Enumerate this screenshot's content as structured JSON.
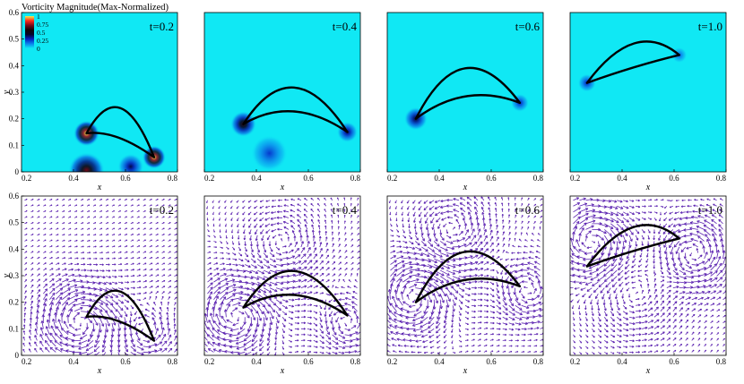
{
  "figure": {
    "colorbar_title": "Vorticity Magnitude(Max-Normalized)",
    "colorbar_ticks": [
      "1",
      "0.75",
      "0.5",
      "0.25",
      "0"
    ],
    "xlabel": "x",
    "ylabel": "y"
  },
  "colors": {
    "field_background": "#10e8f4",
    "colormap": [
      "#f1ec4c",
      "#ff2a1a",
      "#7a0b1b",
      "#120406",
      "#03052a",
      "#0520c2",
      "#0a82ec",
      "#10e8f4"
    ],
    "vector_color": "#5b22b0",
    "body_outline": "#000000"
  },
  "chart_data": [
    {
      "type": "contour",
      "row": "vorticity",
      "label": "t=0.2",
      "xticks": [
        "0.2",
        "0.4",
        "0.6",
        "0.8"
      ],
      "yticks": [
        "0",
        "0.1",
        "0.2",
        "0.3",
        "0.4",
        "0.5",
        "0.6"
      ],
      "xlim": [
        0.2,
        0.8
      ],
      "ylim": [
        0.0,
        0.6
      ],
      "body": {
        "tip1": [
          0.45,
          0.145
        ],
        "tip2": [
          0.71,
          0.055
        ],
        "upper_ctrl": [
          0.58,
          0.38
        ],
        "lower_ctrl": [
          0.56,
          0.16
        ]
      },
      "vortices": [
        {
          "x": 0.45,
          "y": 0.145,
          "r": 0.05,
          "strength": 1.0
        },
        {
          "x": 0.71,
          "y": 0.055,
          "r": 0.045,
          "strength": 1.0
        },
        {
          "x": 0.45,
          "y": 0.005,
          "r": 0.07,
          "strength": 0.7
        },
        {
          "x": 0.62,
          "y": 0.02,
          "r": 0.05,
          "strength": 0.4
        }
      ]
    },
    {
      "type": "contour",
      "row": "vorticity",
      "label": "t=0.4",
      "xticks": [
        "0.2",
        "0.4",
        "0.6",
        "0.8"
      ],
      "yticks": [],
      "xlim": [
        0.2,
        0.8
      ],
      "ylim": [
        0.0,
        0.6
      ],
      "body": {
        "tip1": [
          0.35,
          0.18
        ],
        "tip2": [
          0.75,
          0.15
        ],
        "upper_ctrl": [
          0.54,
          0.47
        ],
        "lower_ctrl": [
          0.54,
          0.29
        ]
      },
      "vortices": [
        {
          "x": 0.35,
          "y": 0.18,
          "r": 0.05,
          "strength": 0.6
        },
        {
          "x": 0.75,
          "y": 0.15,
          "r": 0.04,
          "strength": 0.4
        },
        {
          "x": 0.45,
          "y": 0.07,
          "r": 0.07,
          "strength": 0.25
        }
      ]
    },
    {
      "type": "contour",
      "row": "vorticity",
      "label": "t=0.6",
      "xticks": [
        "0.2",
        "0.4",
        "0.6",
        "0.8"
      ],
      "yticks": [],
      "xlim": [
        0.2,
        0.8
      ],
      "ylim": [
        0.0,
        0.6
      ],
      "body": {
        "tip1": [
          0.31,
          0.2
        ],
        "tip2": [
          0.71,
          0.26
        ],
        "upper_ctrl": [
          0.49,
          0.55
        ],
        "lower_ctrl": [
          0.5,
          0.34
        ]
      },
      "vortices": [
        {
          "x": 0.31,
          "y": 0.2,
          "r": 0.045,
          "strength": 0.45
        },
        {
          "x": 0.71,
          "y": 0.26,
          "r": 0.035,
          "strength": 0.3
        }
      ]
    },
    {
      "type": "contour",
      "row": "vorticity",
      "label": "t=1.0",
      "xticks": [
        "0.2",
        "0.4",
        "0.6",
        "0.8"
      ],
      "yticks": [],
      "xlim": [
        0.2,
        0.8
      ],
      "ylim": [
        0.0,
        0.6
      ],
      "body": {
        "tip1": [
          0.265,
          0.335
        ],
        "tip2": [
          0.62,
          0.44
        ],
        "upper_ctrl": [
          0.45,
          0.58
        ],
        "lower_ctrl": [
          0.45,
          0.4
        ]
      },
      "vortices": [
        {
          "x": 0.265,
          "y": 0.335,
          "r": 0.035,
          "strength": 0.3
        },
        {
          "x": 0.62,
          "y": 0.44,
          "r": 0.03,
          "strength": 0.2
        }
      ]
    },
    {
      "type": "quiver",
      "row": "velocity",
      "label": "t=0.2",
      "xticks": [
        "0.2",
        "0.4",
        "0.6",
        "0.8"
      ],
      "yticks": [
        "0",
        "0.1",
        "0.2",
        "0.3",
        "0.4",
        "0.5",
        "0.6"
      ],
      "xlim": [
        0.2,
        0.8
      ],
      "ylim": [
        0.0,
        0.6
      ],
      "body": {
        "tip1": [
          0.45,
          0.145
        ],
        "tip2": [
          0.71,
          0.055
        ],
        "upper_ctrl": [
          0.58,
          0.38
        ],
        "lower_ctrl": [
          0.56,
          0.16
        ]
      },
      "swirls": [
        {
          "x": 0.42,
          "y": 0.13,
          "s": -1.0,
          "r": 0.12
        },
        {
          "x": 0.68,
          "y": 0.08,
          "s": 0.8,
          "r": 0.08
        }
      ]
    },
    {
      "type": "quiver",
      "row": "velocity",
      "label": "t=0.4",
      "xticks": [
        "0.2",
        "0.4",
        "0.6",
        "0.8"
      ],
      "yticks": [],
      "xlim": [
        0.2,
        0.8
      ],
      "ylim": [
        0.0,
        0.6
      ],
      "body": {
        "tip1": [
          0.35,
          0.18
        ],
        "tip2": [
          0.75,
          0.15
        ],
        "upper_ctrl": [
          0.54,
          0.47
        ],
        "lower_ctrl": [
          0.54,
          0.29
        ]
      },
      "swirls": [
        {
          "x": 0.32,
          "y": 0.15,
          "s": -1.0,
          "r": 0.12
        },
        {
          "x": 0.75,
          "y": 0.12,
          "s": 0.8,
          "r": 0.09
        },
        {
          "x": 0.5,
          "y": 0.42,
          "s": 0.4,
          "r": 0.12
        }
      ]
    },
    {
      "type": "quiver",
      "row": "velocity",
      "label": "t=0.6",
      "xticks": [
        "0.2",
        "0.4",
        "0.6",
        "0.8"
      ],
      "yticks": [],
      "xlim": [
        0.2,
        0.8
      ],
      "ylim": [
        0.0,
        0.6
      ],
      "body": {
        "tip1": [
          0.31,
          0.2
        ],
        "tip2": [
          0.71,
          0.26
        ],
        "upper_ctrl": [
          0.49,
          0.55
        ],
        "lower_ctrl": [
          0.5,
          0.34
        ]
      },
      "swirls": [
        {
          "x": 0.3,
          "y": 0.22,
          "s": -1.0,
          "r": 0.12
        },
        {
          "x": 0.74,
          "y": 0.24,
          "s": 0.8,
          "r": 0.1
        },
        {
          "x": 0.45,
          "y": 0.47,
          "s": 0.5,
          "r": 0.12
        }
      ]
    },
    {
      "type": "quiver",
      "row": "velocity",
      "label": "t=1.0",
      "xticks": [
        "0.2",
        "0.4",
        "0.6",
        "0.8"
      ],
      "yticks": [],
      "xlim": [
        0.2,
        0.8
      ],
      "ylim": [
        0.0,
        0.6
      ],
      "body": {
        "tip1": [
          0.265,
          0.335
        ],
        "tip2": [
          0.62,
          0.44
        ],
        "upper_ctrl": [
          0.45,
          0.58
        ],
        "lower_ctrl": [
          0.45,
          0.4
        ]
      },
      "swirls": [
        {
          "x": 0.28,
          "y": 0.43,
          "s": -0.9,
          "r": 0.12
        },
        {
          "x": 0.68,
          "y": 0.38,
          "s": 0.8,
          "r": 0.12
        },
        {
          "x": 0.45,
          "y": 0.22,
          "s": 0.3,
          "r": 0.15
        }
      ]
    }
  ]
}
